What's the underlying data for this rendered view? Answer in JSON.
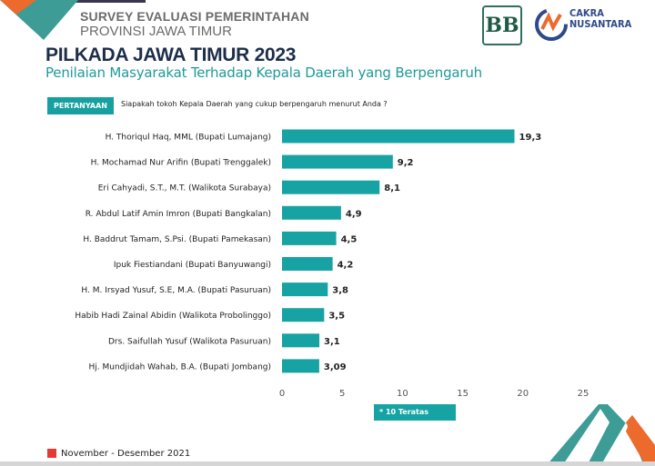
{
  "header": {
    "survey_line1": "SURVEY EVALUASI PEMERINTAHAN",
    "survey_line2": "PROVINSI JAWA TIMUR",
    "title": "PILKADA JAWA TIMUR 2023",
    "subtitle": "Penilaian Masyarakat Terhadap Kepala Daerah yang Berpengaruh",
    "logo1": "BB",
    "logo2_line1": "CAKRA",
    "logo2_line2": "NUSANTARA"
  },
  "question": {
    "badge": "PERTANYAAN",
    "text": "Siapakah tokoh Kepala Daerah yang cukup berpengaruh menurut Anda ?"
  },
  "note": "* 10 Teratas",
  "legend": {
    "label": "November - Desember 2021",
    "color": "#e53935"
  },
  "colors": {
    "bar": "#17a3a3",
    "title": "#1d2e4a",
    "accent": "#1f9a9a"
  },
  "chart_data": {
    "type": "bar",
    "orientation": "horizontal",
    "categories": [
      "H. Thoriqul Haq, MML (Bupati Lumajang)",
      "H. Mochamad Nur Arifin (Bupati Trenggalek)",
      "Eri Cahyadi, S.T., M.T. (Walikota Surabaya)",
      "R. Abdul Latif Amin Imron (Bupati Bangkalan)",
      "H. Baddrut Tamam, S.Psi. (Bupati Pamekasan)",
      "Ipuk Fiestiandani (Bupati Banyuwangi)",
      "H. M. Irsyad Yusuf, S.E, M.A. (Bupati Pasuruan)",
      "Habib Hadi Zainal Abidin (Walikota Probolinggo)",
      "Drs. Saifullah Yusuf (Walikota Pasuruan)",
      "Hj. Mundjidah Wahab, B.A. (Bupati Jombang)"
    ],
    "values": [
      19.3,
      9.2,
      8.1,
      4.9,
      4.5,
      4.2,
      3.8,
      3.5,
      3.1,
      3.09
    ],
    "value_labels": [
      "19,3",
      "9,2",
      "8,1",
      "4,9",
      "4,5",
      "4,2",
      "3,8",
      "3,5",
      "3,1",
      "3,09"
    ],
    "xlim": [
      0,
      25
    ],
    "xticks": [
      "0",
      "5",
      "10",
      "15",
      "20",
      "25"
    ],
    "series_name": "November - Desember 2021",
    "grid": false
  }
}
